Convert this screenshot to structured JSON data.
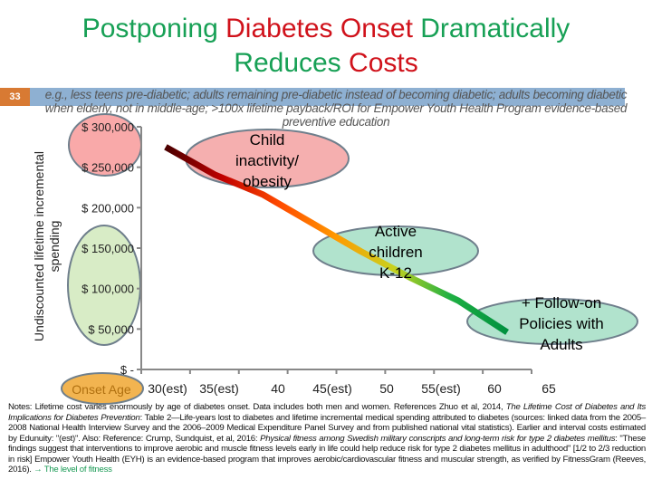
{
  "title": {
    "line1": [
      {
        "text": "Postponing ",
        "color": "green"
      },
      {
        "text": "Diabetes Onset",
        "color": "red"
      },
      {
        "text": " Dramatically",
        "color": "green"
      }
    ],
    "line2": [
      {
        "text": "Reduces ",
        "color": "green"
      },
      {
        "text": "Costs",
        "color": "red"
      }
    ]
  },
  "slide_number": "33",
  "subtitle": "e.g., less teens pre-diabetic;  adults remaining pre-diabetic instead of becoming diabetic;  adults becoming diabetic when elderly, not in middle-age;  >100x lifetime payback/ROI for Empower Youth Health Program evidence-based preventive education",
  "colors": {
    "title_green": "#17a055",
    "title_red": "#d0121b",
    "band": "#8eb0d2",
    "slide_number_bg": "#d87a33"
  },
  "chart_data": {
    "type": "line",
    "ylabel": "Undiscounted lifetime incremental spending",
    "xlabel_badge": "Onset Age",
    "categories": [
      "30(est)",
      "35(est)",
      "40",
      "45(est)",
      "50",
      "55(est)",
      "60",
      "65"
    ],
    "values": [
      275000,
      241000,
      216000,
      181000,
      146000,
      114000,
      85000,
      46000
    ],
    "ylim": [
      0,
      300000
    ],
    "yticks": [
      {
        "value": 300000,
        "label": "$ 300,000"
      },
      {
        "value": 250000,
        "label": "$ 250,000"
      },
      {
        "value": 200000,
        "label": "$ 200,000"
      },
      {
        "value": 150000,
        "label": "$ 150,000"
      },
      {
        "value": 100000,
        "label": "$ 100,000"
      },
      {
        "value": 50000,
        "label": "$ 50,000"
      },
      {
        "value": 0,
        "label": "$ -"
      }
    ],
    "grid": false,
    "line_gradient": [
      "#4a0000",
      "#c00000",
      "#ff4a00",
      "#ff9a00",
      "#c8d21e",
      "#1fb043",
      "#00903f"
    ],
    "annotations": [
      {
        "lines": [
          "Child",
          "inactivity/",
          "obesity"
        ],
        "fill": "#f4a6a6"
      },
      {
        "lines": [
          "Active",
          "children",
          "K-12"
        ],
        "fill": "#a8e0c8"
      },
      {
        "lines": [
          "+ Follow-on",
          "Policies with",
          "Adults"
        ],
        "fill": "#a8e0c8"
      }
    ],
    "highlight_fills": {
      "high_costs": "#f9a9a9",
      "low_costs": "#d8ecc6",
      "onset_age": "#f2b450"
    }
  },
  "notes": {
    "p1": "Notes:  Lifetime cost varies enormously by age of diabetes onset.  Data includes both men and women.   References  Zhuo et al, 2014, ",
    "i1": "The Lifetime Cost of Diabetes and Its Implications for Diabetes Prevention",
    "p2": ":  Table 2—Life-years lost to diabetes and lifetime incremental medical spending attributed to diabetes (sources:  linked data from the 2005–2008 National Health Interview Survey and the 2006–2009 Medical Expenditure Panel Survey and from published national vital statistics).  Earlier and interval costs estimated by Edunuity: \"(est)\".    Also:  Reference:  Crump, Sundquist, et al, 2016:  ",
    "i2": "Physical fitness among Swedish military conscripts and long-term risk for type 2 diabetes mellitus",
    "p3": ":  \"These findings suggest that interventions to improve aerobic and muscle fitness levels early in life could help reduce risk for type 2 diabetes mellitus in adulthood\" [1/2  to 2/3 reduction in risk]    Empower Youth Health (EYH) is an evidence-based program that improves aerobic/cardiovascular fitness and muscular strength, as verified by FitnessGram (Reeves, 2016).  ",
    "link": "→ The level of fitness"
  }
}
